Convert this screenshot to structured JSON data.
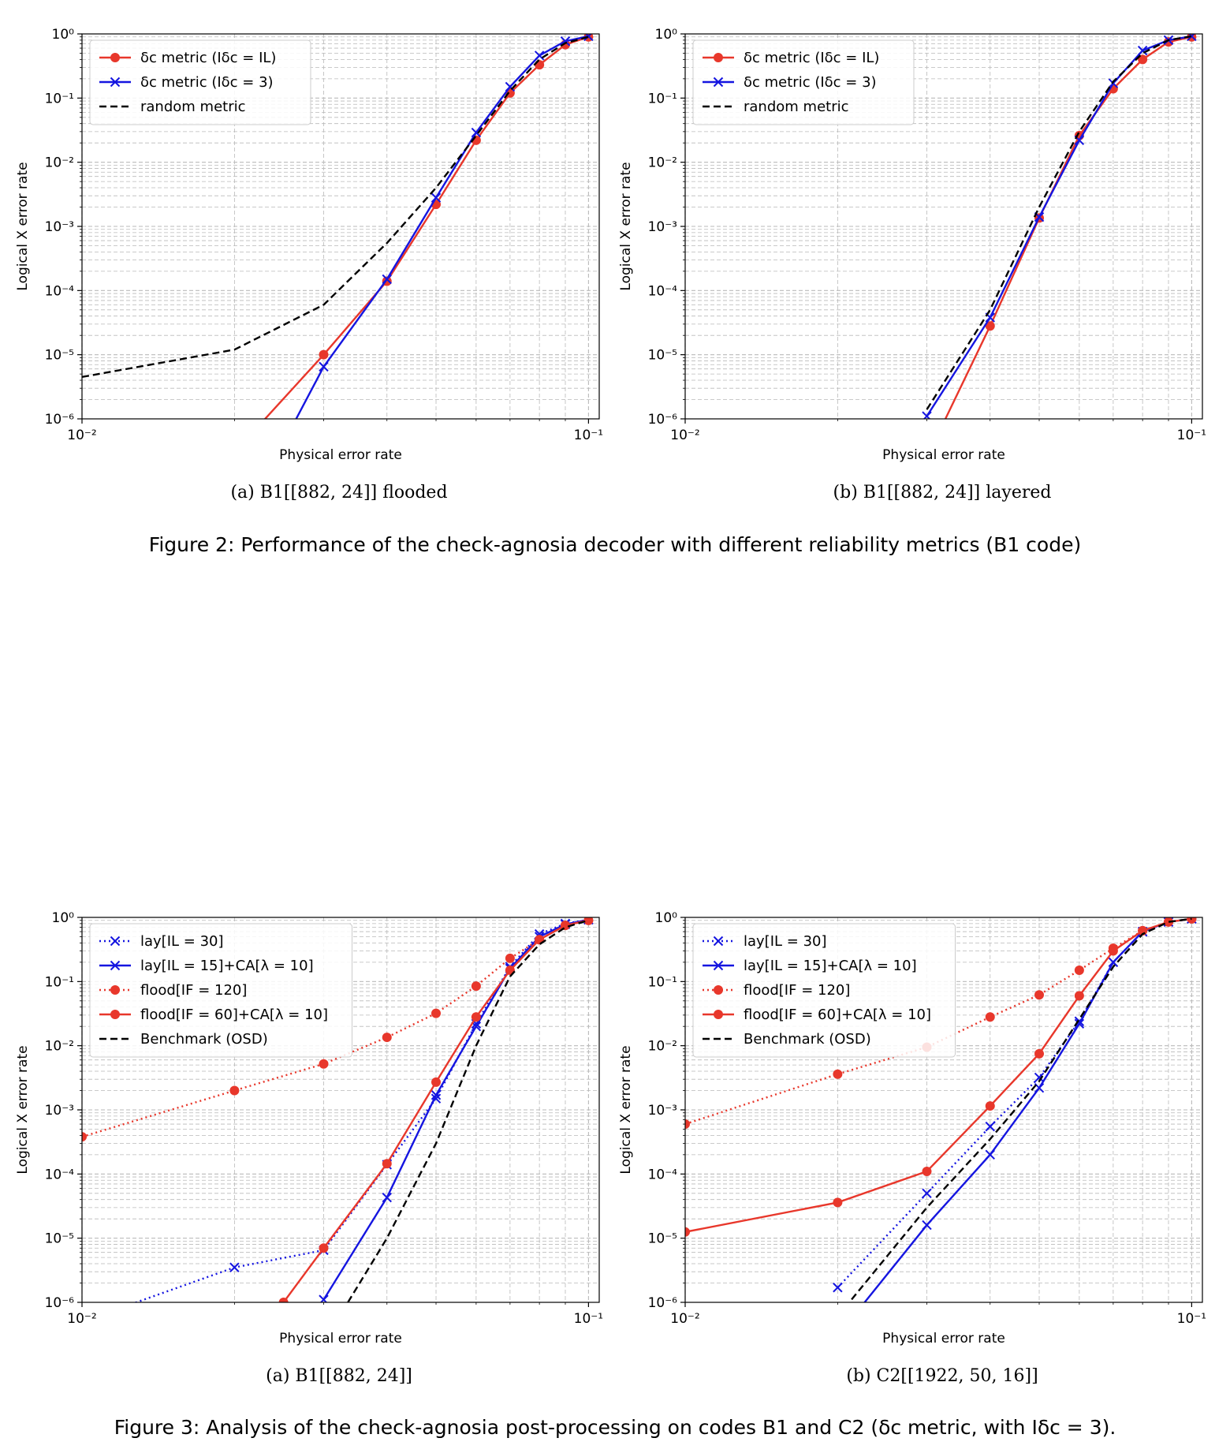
{
  "figures": [
    {
      "caption": "Figure 2: Performance of the check-agnosia decoder with different reliability metrics (B1 code)",
      "subcaptions": [
        "(a)  B1[[882, 24]] flooded",
        "(b)  B1[[882, 24]] layered"
      ]
    },
    {
      "caption": "Figure 3: Analysis of the check-agnosia post-processing on codes B1 and C2 (δc metric, with Iδc = 3).",
      "subcaptions": [
        "(a)  B1[[882, 24]]",
        "(b)  C2[[1922, 50, 16]]"
      ]
    }
  ],
  "chart_data": [
    {
      "type": "line",
      "scale": "log-log",
      "xlabel": "Physical error rate",
      "ylabel": "Logical X error rate",
      "xlim": [
        0.01,
        0.105
      ],
      "ylim": [
        1e-06,
        1
      ],
      "grid": true,
      "legend_position": "top-left",
      "series": [
        {
          "name": "δc metric (Iδc = IL)",
          "color": "#e8372b",
          "style": "solid",
          "marker": "circle",
          "points": [
            [
              0.02,
              3e-07
            ],
            [
              0.03,
              1e-05
            ],
            [
              0.04,
              0.00014
            ],
            [
              0.05,
              0.0022
            ],
            [
              0.06,
              0.022
            ],
            [
              0.07,
              0.12
            ],
            [
              0.08,
              0.33
            ],
            [
              0.09,
              0.68
            ],
            [
              0.1,
              0.9
            ]
          ]
        },
        {
          "name": "δc metric (Iδc = 3)",
          "color": "#1515e0",
          "style": "solid",
          "marker": "x",
          "points": [
            [
              0.02,
              1.5e-08
            ],
            [
              0.03,
              6.5e-06
            ],
            [
              0.04,
              0.00015
            ],
            [
              0.05,
              0.0028
            ],
            [
              0.06,
              0.029
            ],
            [
              0.07,
              0.15
            ],
            [
              0.08,
              0.46
            ],
            [
              0.09,
              0.77
            ],
            [
              0.1,
              0.92
            ]
          ]
        },
        {
          "name": "random metric",
          "color": "#000000",
          "style": "dashed",
          "marker": "none",
          "points": [
            [
              0.01,
              4.5e-06
            ],
            [
              0.02,
              1.2e-05
            ],
            [
              0.03,
              6e-05
            ],
            [
              0.04,
              0.00055
            ],
            [
              0.05,
              0.004
            ],
            [
              0.06,
              0.026
            ],
            [
              0.07,
              0.13
            ],
            [
              0.08,
              0.4
            ],
            [
              0.09,
              0.72
            ],
            [
              0.1,
              0.9
            ]
          ]
        }
      ]
    },
    {
      "type": "line",
      "scale": "log-log",
      "xlabel": "Physical error rate",
      "ylabel": "Logical X error rate",
      "xlim": [
        0.01,
        0.105
      ],
      "ylim": [
        1e-06,
        1
      ],
      "grid": true,
      "legend_position": "top-left",
      "series": [
        {
          "name": "δc metric (Iδc = IL)",
          "color": "#e8372b",
          "style": "solid",
          "marker": "circle",
          "points": [
            [
              0.03,
              2.5e-07
            ],
            [
              0.04,
              2.8e-05
            ],
            [
              0.05,
              0.00135
            ],
            [
              0.06,
              0.026
            ],
            [
              0.07,
              0.14
            ],
            [
              0.08,
              0.4
            ],
            [
              0.09,
              0.75
            ],
            [
              0.1,
              0.9
            ]
          ]
        },
        {
          "name": "δc metric (Iδc = 3)",
          "color": "#1515e0",
          "style": "solid",
          "marker": "x",
          "points": [
            [
              0.03,
              1.1e-06
            ],
            [
              0.04,
              3.8e-05
            ],
            [
              0.05,
              0.0014
            ],
            [
              0.06,
              0.022
            ],
            [
              0.07,
              0.17
            ],
            [
              0.08,
              0.55
            ],
            [
              0.09,
              0.8
            ],
            [
              0.1,
              0.92
            ]
          ]
        },
        {
          "name": "random metric",
          "color": "#000000",
          "style": "dashed",
          "marker": "none",
          "points": [
            [
              0.03,
              1.4e-06
            ],
            [
              0.04,
              5e-05
            ],
            [
              0.05,
              0.002
            ],
            [
              0.06,
              0.03
            ],
            [
              0.07,
              0.18
            ],
            [
              0.08,
              0.5
            ],
            [
              0.09,
              0.8
            ],
            [
              0.1,
              0.92
            ]
          ]
        }
      ]
    },
    {
      "type": "line",
      "scale": "log-log",
      "xlabel": "Physical error rate",
      "ylabel": "Logical X error rate",
      "xlim": [
        0.01,
        0.105
      ],
      "ylim": [
        1e-06,
        1
      ],
      "grid": true,
      "legend_position": "top-left",
      "series": [
        {
          "name": "lay[IL = 30]",
          "color": "#1515e0",
          "style": "dotted",
          "marker": "x",
          "points": [
            [
              0.01,
              5e-07
            ],
            [
              0.02,
              3.5e-06
            ],
            [
              0.03,
              6.5e-06
            ],
            [
              0.04,
              0.00014
            ],
            [
              0.05,
              0.0015
            ],
            [
              0.06,
              0.022
            ],
            [
              0.07,
              0.17
            ],
            [
              0.08,
              0.55
            ],
            [
              0.09,
              0.8
            ],
            [
              0.1,
              0.92
            ]
          ]
        },
        {
          "name": "lay[IL = 15]+CA[λ = 10]",
          "color": "#1515e0",
          "style": "solid",
          "marker": "x",
          "points": [
            [
              0.03,
              1.1e-06
            ],
            [
              0.04,
              4.3e-05
            ],
            [
              0.05,
              0.0017
            ],
            [
              0.06,
              0.02
            ],
            [
              0.07,
              0.16
            ],
            [
              0.08,
              0.5
            ],
            [
              0.09,
              0.78
            ],
            [
              0.1,
              0.92
            ]
          ]
        },
        {
          "name": "flood[IF = 120]",
          "color": "#e8372b",
          "style": "dotted",
          "marker": "circle",
          "points": [
            [
              0.01,
              0.00038
            ],
            [
              0.02,
              0.002
            ],
            [
              0.03,
              0.0052
            ],
            [
              0.04,
              0.0135
            ],
            [
              0.05,
              0.032
            ],
            [
              0.06,
              0.085
            ],
            [
              0.07,
              0.23
            ],
            [
              0.08,
              0.45
            ],
            [
              0.09,
              0.75
            ],
            [
              0.1,
              0.9
            ]
          ]
        },
        {
          "name": "flood[IF = 60]+CA[λ = 10]",
          "color": "#e8372b",
          "style": "solid",
          "marker": "circle",
          "points": [
            [
              0.025,
              1e-06
            ],
            [
              0.03,
              7e-06
            ],
            [
              0.04,
              0.000145
            ],
            [
              0.05,
              0.0027
            ],
            [
              0.06,
              0.028
            ],
            [
              0.07,
              0.15
            ],
            [
              0.08,
              0.45
            ],
            [
              0.09,
              0.75
            ],
            [
              0.1,
              0.9
            ]
          ]
        },
        {
          "name": "Benchmark (OSD)",
          "color": "#000000",
          "style": "dashed",
          "marker": "none",
          "points": [
            [
              0.0335,
              1e-06
            ],
            [
              0.04,
              1e-05
            ],
            [
              0.05,
              0.0003
            ],
            [
              0.06,
              0.01
            ],
            [
              0.07,
              0.12
            ],
            [
              0.08,
              0.38
            ],
            [
              0.09,
              0.7
            ],
            [
              0.1,
              0.9
            ]
          ]
        }
      ]
    },
    {
      "type": "line",
      "scale": "log-log",
      "xlabel": "Physical error rate",
      "ylabel": "Logical X error rate",
      "xlim": [
        0.01,
        0.105
      ],
      "ylim": [
        1e-06,
        1
      ],
      "grid": true,
      "legend_position": "top-left",
      "series": [
        {
          "name": "lay[IL = 30]",
          "color": "#1515e0",
          "style": "dotted",
          "marker": "x",
          "points": [
            [
              0.02,
              1.7e-06
            ],
            [
              0.03,
              5e-05
            ],
            [
              0.04,
              0.00055
            ],
            [
              0.05,
              0.0032
            ],
            [
              0.06,
              0.024
            ],
            [
              0.07,
              0.2
            ],
            [
              0.08,
              0.6
            ],
            [
              0.09,
              0.85
            ],
            [
              0.1,
              0.95
            ]
          ]
        },
        {
          "name": "lay[IL = 15]+CA[λ = 10]",
          "color": "#1515e0",
          "style": "solid",
          "marker": "x",
          "points": [
            [
              0.02,
              3e-07
            ],
            [
              0.03,
              1.6e-05
            ],
            [
              0.04,
              0.0002
            ],
            [
              0.05,
              0.0022
            ],
            [
              0.06,
              0.022
            ],
            [
              0.07,
              0.2
            ],
            [
              0.08,
              0.6
            ],
            [
              0.09,
              0.85
            ],
            [
              0.1,
              0.95
            ]
          ]
        },
        {
          "name": "flood[IF = 120]",
          "color": "#e8372b",
          "style": "dotted",
          "marker": "circle",
          "points": [
            [
              0.01,
              0.0006
            ],
            [
              0.02,
              0.0036
            ],
            [
              0.03,
              0.0095
            ],
            [
              0.04,
              0.028
            ],
            [
              0.05,
              0.062
            ],
            [
              0.06,
              0.15
            ],
            [
              0.07,
              0.33
            ],
            [
              0.08,
              0.62
            ],
            [
              0.09,
              0.85
            ],
            [
              0.1,
              0.95
            ]
          ]
        },
        {
          "name": "flood[IF = 60]+CA[λ = 10]",
          "color": "#e8372b",
          "style": "solid",
          "marker": "circle",
          "points": [
            [
              0.01,
              1.25e-05
            ],
            [
              0.02,
              3.6e-05
            ],
            [
              0.03,
              0.00011
            ],
            [
              0.04,
              0.00115
            ],
            [
              0.05,
              0.0075
            ],
            [
              0.06,
              0.06
            ],
            [
              0.07,
              0.3
            ],
            [
              0.08,
              0.62
            ],
            [
              0.09,
              0.85
            ],
            [
              0.1,
              0.95
            ]
          ]
        },
        {
          "name": "Benchmark (OSD)",
          "color": "#000000",
          "style": "dashed",
          "marker": "none",
          "points": [
            [
              0.02,
              6e-07
            ],
            [
              0.03,
              3e-05
            ],
            [
              0.04,
              0.00035
            ],
            [
              0.05,
              0.0028
            ],
            [
              0.06,
              0.026
            ],
            [
              0.07,
              0.17
            ],
            [
              0.08,
              0.55
            ],
            [
              0.09,
              0.85
            ],
            [
              0.1,
              0.95
            ]
          ]
        }
      ]
    }
  ]
}
